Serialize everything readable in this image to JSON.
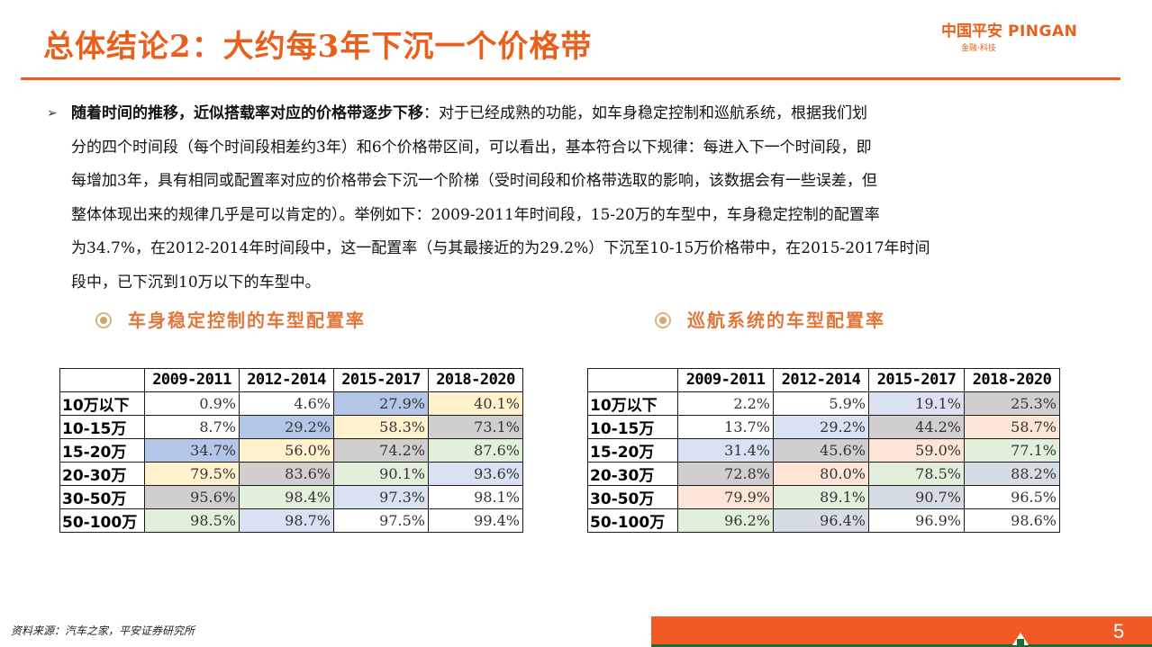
{
  "header": {
    "title": "总体结论2：大约每3年下沉一个价格带",
    "logo": {
      "cn": "中国平安",
      "en": "PINGAN",
      "tagline": "金融·科技"
    }
  },
  "body": {
    "bullet_icon": "arrow-right-icon",
    "lead": "随着时间的推移，近似搭载率对应的价格带逐步下移",
    "lines": [
      "：对于已经成熟的功能，如车身稳定控制和巡航系统，根据我们划",
      "分的四个时间段（每个时间段相差约3年）和6个价格带区间，可以看出，基本符合以下规律：每进入下一个时间段，即",
      "每增加3年，具有相同或配置率对应的价格带会下沉一个阶梯（受时间段和价格带选取的影响，该数据会有一些误差，但",
      "整体体现出来的规律几乎是可以肯定的）。举例如下：2009-2011年时间段，15-20万的车型中，车身稳定控制的配置率",
      "为34.7%，在2012-2014年时间段中，这一配置率（与其最接近的为29.2%）下沉至10-15万价格带中，在2015-2017年时间",
      "段中，已下沉到10万以下的车型中。"
    ]
  },
  "colors": {
    "brand_orange": "#e8601c",
    "subhead_orange": "#e0773a",
    "blue": "#b4c6e7",
    "yellow": "#fff2cc",
    "gray": "#d0cece",
    "green": "#e2efda",
    "lavender": "#d9e1f2",
    "peach": "#fce4d6",
    "slate": "#d6dce4"
  },
  "chart_data": [
    {
      "type": "table",
      "title": "车身稳定控制的车型配置率",
      "columns": [
        "",
        "2009-2011",
        "2012-2014",
        "2015-2017",
        "2018-2020"
      ],
      "rows": [
        {
          "label": "10万以下",
          "values": [
            "0.9%",
            "4.6%",
            "27.9%",
            "40.1%"
          ],
          "colors": [
            "white",
            "white",
            "blue",
            "yellow"
          ]
        },
        {
          "label": "10-15万",
          "values": [
            "8.7%",
            "29.2%",
            "58.3%",
            "73.1%"
          ],
          "colors": [
            "white",
            "blue",
            "yellow",
            "gray"
          ]
        },
        {
          "label": "15-20万",
          "values": [
            "34.7%",
            "56.0%",
            "74.2%",
            "87.6%"
          ],
          "colors": [
            "blue",
            "yellow",
            "gray",
            "green"
          ]
        },
        {
          "label": "20-30万",
          "values": [
            "79.5%",
            "83.6%",
            "90.1%",
            "93.6%"
          ],
          "colors": [
            "yellow",
            "gray",
            "green",
            "lavender"
          ]
        },
        {
          "label": "30-50万",
          "values": [
            "95.6%",
            "98.4%",
            "97.3%",
            "98.1%"
          ],
          "colors": [
            "gray",
            "green",
            "lavender",
            "white"
          ]
        },
        {
          "label": "50-100万",
          "values": [
            "98.5%",
            "98.7%",
            "97.5%",
            "99.4%"
          ],
          "colors": [
            "green",
            "lavender",
            "white",
            "white"
          ]
        }
      ]
    },
    {
      "type": "table",
      "title": "巡航系统的车型配置率",
      "columns": [
        "",
        "2009-2011",
        "2012-2014",
        "2015-2017",
        "2018-2020"
      ],
      "rows": [
        {
          "label": "10万以下",
          "values": [
            "2.2%",
            "5.9%",
            "19.1%",
            "25.3%"
          ],
          "colors": [
            "white",
            "white",
            "lavender",
            "gray"
          ]
        },
        {
          "label": "10-15万",
          "values": [
            "13.7%",
            "29.2%",
            "44.2%",
            "58.7%"
          ],
          "colors": [
            "white",
            "lavender",
            "gray",
            "peach"
          ]
        },
        {
          "label": "15-20万",
          "values": [
            "31.4%",
            "45.6%",
            "59.0%",
            "77.1%"
          ],
          "colors": [
            "lavender",
            "gray",
            "peach",
            "green"
          ]
        },
        {
          "label": "20-30万",
          "values": [
            "72.8%",
            "80.0%",
            "78.5%",
            "88.2%"
          ],
          "colors": [
            "gray",
            "peach",
            "green",
            "slate"
          ]
        },
        {
          "label": "30-50万",
          "values": [
            "79.9%",
            "89.1%",
            "90.7%",
            "96.5%"
          ],
          "colors": [
            "peach",
            "green",
            "slate",
            "white"
          ]
        },
        {
          "label": "50-100万",
          "values": [
            "96.2%",
            "96.4%",
            "96.9%",
            "98.6%"
          ],
          "colors": [
            "green",
            "slate",
            "white",
            "white"
          ]
        }
      ]
    }
  ],
  "footer": {
    "source": "资料来源：汽车之家，平安证券研究所",
    "page_number": "5"
  }
}
